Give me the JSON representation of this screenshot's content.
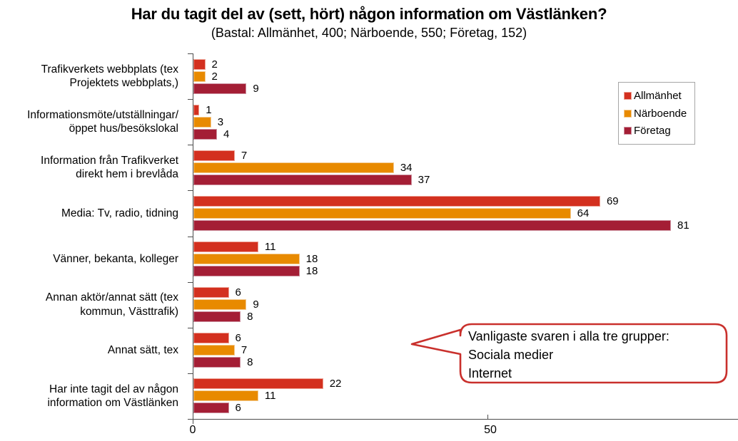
{
  "title": "Har du tagit del av (sett, hört) någon information om Västlänken?",
  "subtitle": "(Bastal: Allmänhet, 400; Närboende, 550; Företag, 152)",
  "legend": {
    "items": [
      {
        "label": "Allmänhet",
        "color": "#D3301F",
        "edge": "#EDA093"
      },
      {
        "label": "Närboende",
        "color": "#E88A00",
        "edge": "#F4CA90"
      },
      {
        "label": "Företag",
        "color": "#A41E35",
        "edge": "#CC909E"
      }
    ]
  },
  "x_axis": {
    "tick_labels": [
      "0",
      "50"
    ],
    "tick_values": [
      0,
      50
    ]
  },
  "callout": {
    "lines": [
      "Vanligaste svaren i alla tre grupper:",
      "Sociala medier",
      "Internet"
    ],
    "border_color": "#C9302C"
  },
  "chart_data": {
    "type": "bar",
    "orientation": "horizontal",
    "title": "Har du tagit del av (sett, hört) någon information om Västlänken?",
    "subtitle": "(Bastal: Allmänhet, 400; Närboende, 550; Företag, 152)",
    "categories": [
      "Trafikverkets webbplats (tex\nProjektets webbplats,)",
      "Informationsmöte/utställningar/\nöppet hus/besökslokal",
      "Information från Trafikverket\ndirekt hem i brevlåda",
      "Media: Tv, radio, tidning",
      "Vänner, bekanta, kolleger",
      "Annan aktör/annat sätt (tex\nkommun, Västtrafik)",
      "Annat sätt, tex",
      "Har inte tagit del av någon\ninformation om Västlänken"
    ],
    "series": [
      {
        "name": "Allmänhet",
        "color": "#D3301F",
        "edge": "#EDA093",
        "values": [
          2,
          1,
          7,
          69,
          11,
          6,
          6,
          22
        ]
      },
      {
        "name": "Närboende",
        "color": "#E88A00",
        "edge": "#F4CA90",
        "values": [
          2,
          3,
          34,
          64,
          18,
          9,
          7,
          11
        ]
      },
      {
        "name": "Företag",
        "color": "#A41E35",
        "edge": "#CC909E",
        "values": [
          9,
          4,
          37,
          81,
          18,
          8,
          8,
          6
        ]
      }
    ],
    "xlim": [
      0,
      92
    ],
    "x_ticks": [
      0,
      50
    ],
    "grid": false,
    "data_labels": true,
    "legend_position": "top-right"
  }
}
